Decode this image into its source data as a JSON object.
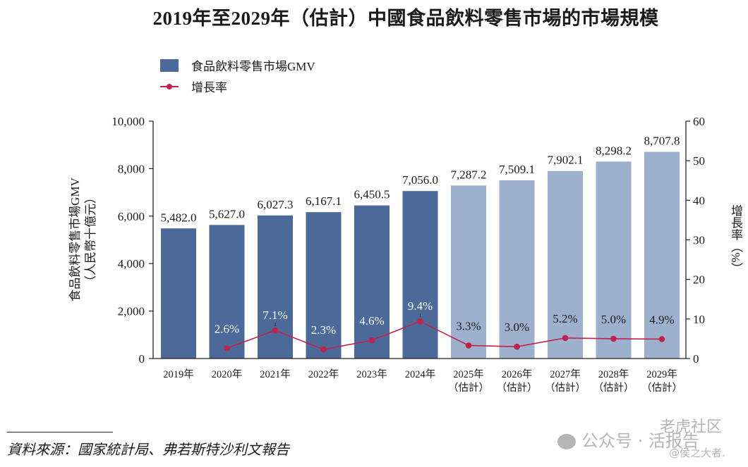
{
  "title": "2019年至2029年（估計）中國食品飲料零售市場的市場規模",
  "legend": {
    "bar_label": "食品飲料零售市場GMV",
    "line_label": "增長率"
  },
  "colors": {
    "bar_actual": "#4b6a99",
    "bar_estimate": "#9db0cd",
    "line": "#c0234a",
    "label_on_dark": "#ffffff",
    "label_on_light": "#1a1a1a"
  },
  "axis_left_label_line1": "食品飲料零售市場GMV",
  "axis_left_label_line2": "（人民幣十億元）",
  "axis_right_label": "增長率（%）",
  "source": "資料來源：國家統計局、弗若斯特沙利文報告",
  "watermark": {
    "line1": "老虎社区",
    "line2": "公众号 · 活报告",
    "line3": "@侯之大者."
  },
  "chart_data": {
    "type": "bar",
    "title": "2019年至2029年（估計）中國食品飲料零售市場的市場規模",
    "categories": [
      "2019年",
      "2020年",
      "2021年",
      "2022年",
      "2023年",
      "2024年",
      "2025年",
      "2026年",
      "2027年",
      "2028年",
      "2029年"
    ],
    "category_sublabels": [
      "",
      "",
      "",
      "",
      "",
      "",
      "（估計）",
      "（估計）",
      "（估計）",
      "（估計）",
      "（估計）"
    ],
    "estimate": [
      false,
      false,
      false,
      false,
      false,
      false,
      true,
      true,
      true,
      true,
      true
    ],
    "series": [
      {
        "name": "食品飲料零售市場GMV",
        "type": "bar",
        "axis": "left",
        "values": [
          5482.0,
          5627.0,
          6027.3,
          6167.1,
          6450.5,
          7056.0,
          7287.2,
          7509.1,
          7902.1,
          8298.2,
          8707.8
        ],
        "labels": [
          "5,482.0",
          "5,627.0",
          "6,027.3",
          "6,167.1",
          "6,450.5",
          "7,056.0",
          "7,287.2",
          "7,509.1",
          "7,902.1",
          "8,298.2",
          "8,707.8"
        ]
      },
      {
        "name": "增長率",
        "type": "line",
        "axis": "right",
        "values": [
          null,
          2.6,
          7.1,
          2.3,
          4.6,
          9.4,
          3.3,
          3.0,
          5.2,
          5.0,
          4.9
        ],
        "labels": [
          "",
          "2.6%",
          "7.1%",
          "2.3%",
          "4.6%",
          "9.4%",
          "3.3%",
          "3.0%",
          "5.2%",
          "5.0%",
          "4.9%"
        ]
      }
    ],
    "xlabel": "",
    "ylabel": "食品飲料零售市場GMV（人民幣十億元）",
    "ylabel_right": "增長率（%）",
    "ylim": [
      0,
      10000
    ],
    "ylim_right": [
      0,
      60
    ],
    "yticks": [
      0,
      2000,
      4000,
      6000,
      8000,
      10000
    ],
    "ytick_labels": [
      "0",
      "2,000",
      "4,000",
      "6,000",
      "8,000",
      "10,000"
    ],
    "yticks_right": [
      0,
      10,
      20,
      30,
      40,
      50,
      60
    ],
    "ytick_labels_right": [
      "0",
      "10",
      "20",
      "30",
      "40",
      "50",
      "60"
    ],
    "grid": false,
    "legend_position": "top-left"
  }
}
